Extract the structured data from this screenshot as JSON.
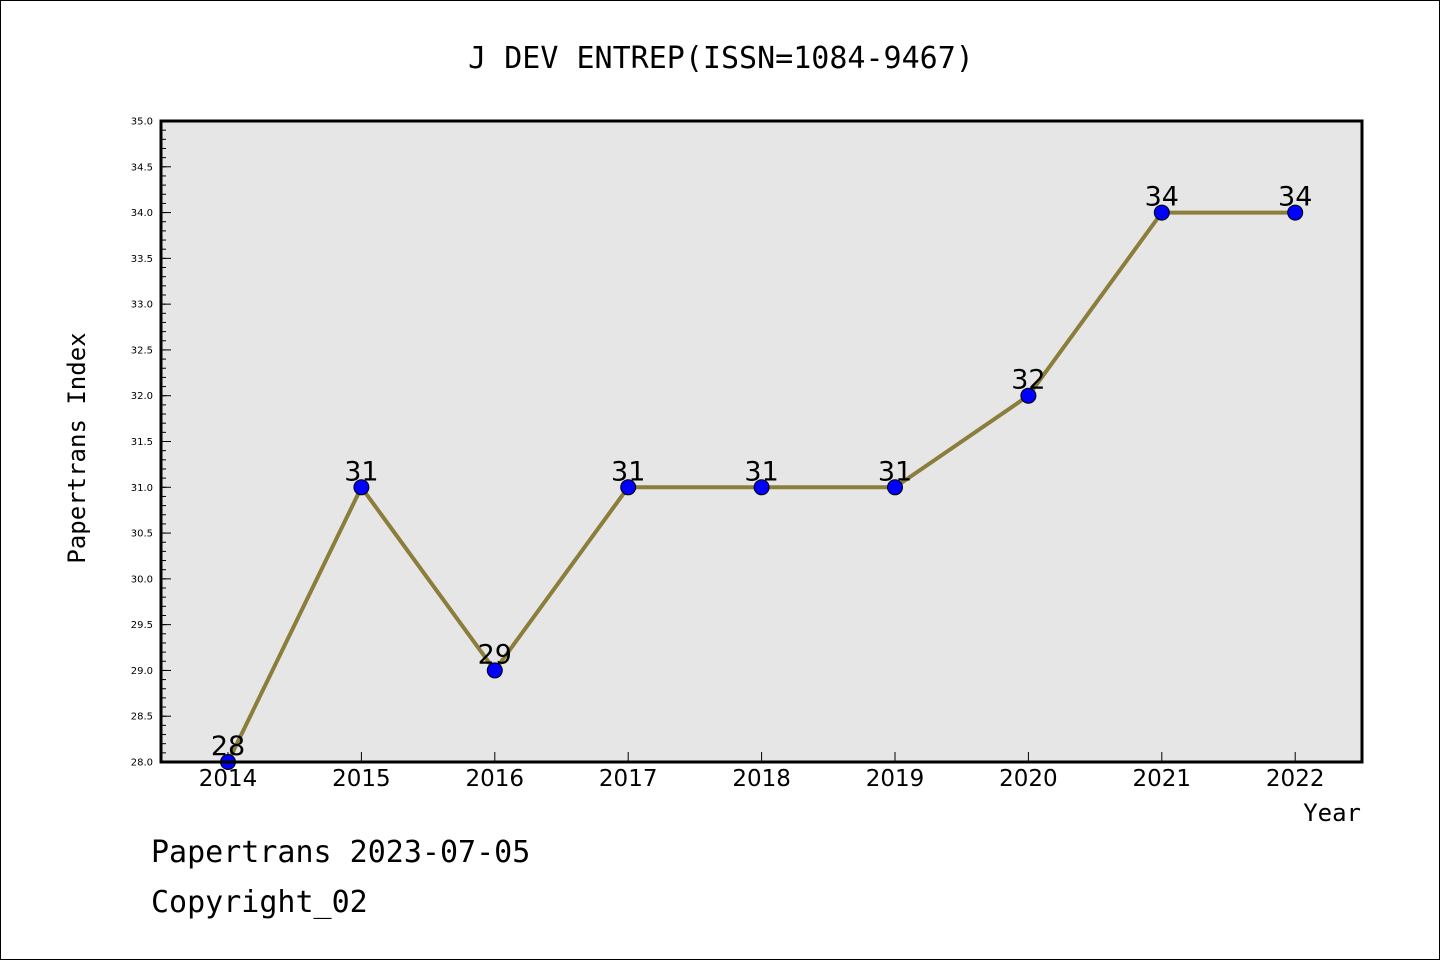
{
  "chart_data": {
    "type": "line",
    "title": "J DEV ENTREP(ISSN=1084-9467)",
    "xlabel": "Year",
    "ylabel": "Papertrans Index",
    "categories": [
      "2014",
      "2015",
      "2016",
      "2017",
      "2018",
      "2019",
      "2020",
      "2021",
      "2022"
    ],
    "series": [
      {
        "values": [
          28,
          31,
          29,
          31,
          31,
          31,
          32,
          34,
          34
        ]
      }
    ],
    "data_labels": [
      "28",
      "31",
      "29",
      "31",
      "31",
      "31",
      "32",
      "34",
      "34"
    ],
    "ylim": [
      28.0,
      35.0
    ],
    "yticks": [
      "28.0",
      "28.5",
      "29.0",
      "29.5",
      "30.0",
      "30.5",
      "31.0",
      "31.5",
      "32.0",
      "32.5",
      "33.0",
      "33.5",
      "34.0",
      "34.5",
      "35.0"
    ],
    "grid": false,
    "legend": "none",
    "colors": {
      "line": "#8b7d3a",
      "marker": "#0000ff",
      "plot_background": "#e6e6e6"
    }
  },
  "footer": {
    "line1": "Papertrans 2023-07-05",
    "line2": "Copyright_02"
  }
}
